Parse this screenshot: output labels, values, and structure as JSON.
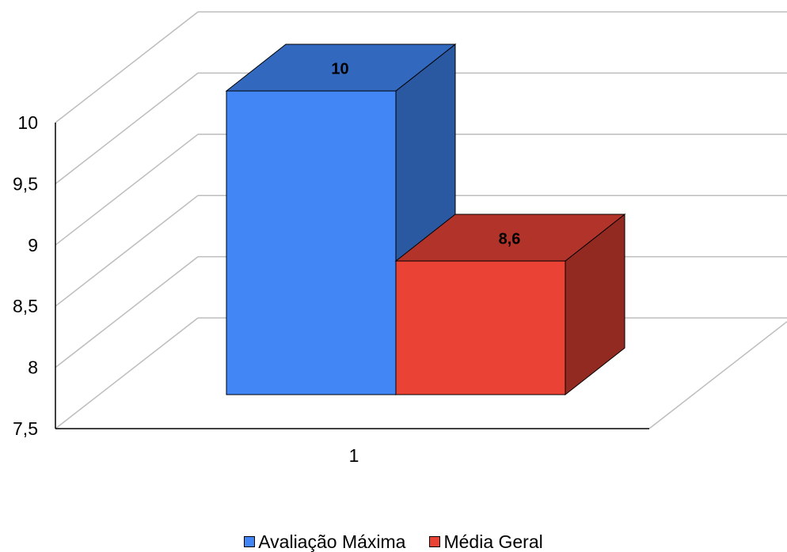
{
  "chart_data": {
    "type": "bar",
    "categories": [
      "1"
    ],
    "series": [
      {
        "name": "Avaliação Máxima",
        "values": [
          10
        ],
        "data_labels": [
          "10"
        ],
        "color": "#4285F4",
        "top_color": "#3268BE",
        "side_color": "#2A58A1"
      },
      {
        "name": "Média Geral",
        "values": [
          8.6
        ],
        "data_labels": [
          "8,6"
        ],
        "color": "#EA4335",
        "top_color": "#B2332A",
        "side_color": "#932A22"
      }
    ],
    "yticks": [
      "7,5",
      "8",
      "8,5",
      "9",
      "9,5",
      "10"
    ],
    "ytick_values": [
      7.5,
      8,
      8.5,
      9,
      9.5,
      10
    ],
    "ylim": [
      7.5,
      10
    ],
    "title": "",
    "xlabel": "",
    "ylabel": "",
    "grid": true,
    "legend_position": "bottom",
    "three_d": true
  }
}
